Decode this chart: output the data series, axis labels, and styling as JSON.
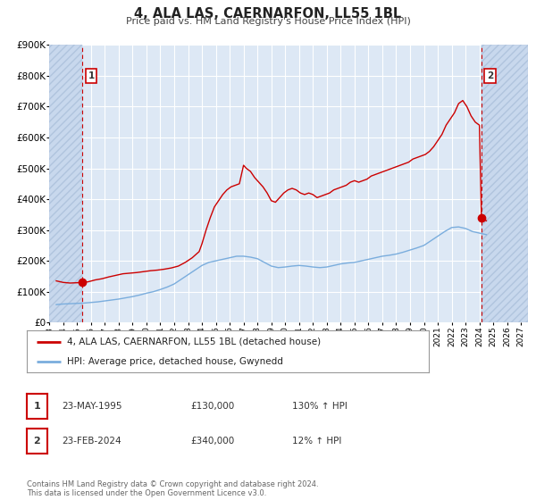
{
  "title": "4, ALA LAS, CAERNARFON, LL55 1BL",
  "subtitle": "Price paid vs. HM Land Registry's House Price Index (HPI)",
  "background_color": "#ffffff",
  "plot_bg_color": "#dde8f5",
  "hatch_bg_color": "#c8d8ed",
  "grid_color": "#ffffff",
  "red_line_color": "#cc0000",
  "blue_line_color": "#7aaddd",
  "ylim": [
    0,
    900000
  ],
  "yticks": [
    0,
    100000,
    200000,
    300000,
    400000,
    500000,
    600000,
    700000,
    800000,
    900000
  ],
  "ytick_labels": [
    "£0",
    "£100K",
    "£200K",
    "£300K",
    "£400K",
    "£500K",
    "£600K",
    "£700K",
    "£800K",
    "£900K"
  ],
  "xlim_start": 1993.0,
  "xlim_end": 2027.5,
  "xticks": [
    1993,
    1994,
    1995,
    1996,
    1997,
    1998,
    1999,
    2000,
    2001,
    2002,
    2003,
    2004,
    2005,
    2006,
    2007,
    2008,
    2009,
    2010,
    2011,
    2012,
    2013,
    2014,
    2015,
    2016,
    2017,
    2018,
    2019,
    2020,
    2021,
    2022,
    2023,
    2024,
    2025,
    2026,
    2027
  ],
  "point1_x": 1995.388,
  "point1_y": 130000,
  "point2_x": 2024.143,
  "point2_y": 340000,
  "hatch_left_end": 1995.388,
  "hatch_right_start": 2024.143,
  "legend_label_red": "4, ALA LAS, CAERNARFON, LL55 1BL (detached house)",
  "legend_label_blue": "HPI: Average price, detached house, Gwynedd",
  "table_row1": [
    "1",
    "23-MAY-1995",
    "£130,000",
    "130% ↑ HPI"
  ],
  "table_row2": [
    "2",
    "23-FEB-2024",
    "£340,000",
    "12% ↑ HPI"
  ],
  "footer": "Contains HM Land Registry data © Crown copyright and database right 2024.\nThis data is licensed under the Open Government Licence v3.0.",
  "red_x": [
    1993.5,
    1994.0,
    1994.5,
    1995.0,
    1995.388,
    1995.8,
    1996.3,
    1996.8,
    1997.3,
    1997.8,
    1998.3,
    1998.8,
    1999.3,
    1999.8,
    2000.3,
    2000.8,
    2001.3,
    2001.8,
    2002.3,
    2002.8,
    2003.3,
    2003.8,
    2004.0,
    2004.3,
    2004.6,
    2004.9,
    2005.2,
    2005.5,
    2005.8,
    2006.1,
    2006.4,
    2006.7,
    2007.0,
    2007.2,
    2007.5,
    2007.8,
    2008.1,
    2008.4,
    2008.7,
    2009.0,
    2009.3,
    2009.6,
    2009.9,
    2010.2,
    2010.5,
    2010.8,
    2011.1,
    2011.4,
    2011.7,
    2012.0,
    2012.3,
    2012.6,
    2012.9,
    2013.2,
    2013.5,
    2013.8,
    2014.1,
    2014.4,
    2014.7,
    2015.0,
    2015.3,
    2015.6,
    2015.9,
    2016.2,
    2016.5,
    2016.8,
    2017.1,
    2017.4,
    2017.7,
    2018.0,
    2018.3,
    2018.6,
    2018.9,
    2019.2,
    2019.5,
    2019.8,
    2020.1,
    2020.4,
    2020.7,
    2021.0,
    2021.3,
    2021.6,
    2021.9,
    2022.2,
    2022.5,
    2022.8,
    2023.1,
    2023.4,
    2023.7,
    2024.0,
    2024.143,
    2024.5
  ],
  "red_y": [
    135000,
    130000,
    128000,
    129000,
    130000,
    132000,
    138000,
    142000,
    148000,
    153000,
    158000,
    160000,
    162000,
    165000,
    168000,
    170000,
    173000,
    177000,
    183000,
    195000,
    210000,
    230000,
    255000,
    300000,
    340000,
    375000,
    395000,
    415000,
    430000,
    440000,
    445000,
    450000,
    510000,
    500000,
    490000,
    470000,
    455000,
    440000,
    420000,
    395000,
    390000,
    405000,
    420000,
    430000,
    435000,
    430000,
    420000,
    415000,
    420000,
    415000,
    405000,
    410000,
    415000,
    420000,
    430000,
    435000,
    440000,
    445000,
    455000,
    460000,
    455000,
    460000,
    465000,
    475000,
    480000,
    485000,
    490000,
    495000,
    500000,
    505000,
    510000,
    515000,
    520000,
    530000,
    535000,
    540000,
    545000,
    555000,
    570000,
    590000,
    610000,
    640000,
    660000,
    680000,
    710000,
    720000,
    700000,
    670000,
    650000,
    640000,
    340000,
    330000
  ],
  "blue_x": [
    1993.5,
    1994.0,
    1994.5,
    1995.0,
    1995.5,
    1996.0,
    1996.5,
    1997.0,
    1997.5,
    1998.0,
    1998.5,
    1999.0,
    1999.5,
    2000.0,
    2000.5,
    2001.0,
    2001.5,
    2002.0,
    2002.5,
    2003.0,
    2003.5,
    2004.0,
    2004.5,
    2005.0,
    2005.5,
    2006.0,
    2006.5,
    2007.0,
    2007.5,
    2008.0,
    2008.5,
    2009.0,
    2009.5,
    2010.0,
    2010.5,
    2011.0,
    2011.5,
    2012.0,
    2012.5,
    2013.0,
    2013.5,
    2014.0,
    2014.5,
    2015.0,
    2015.5,
    2016.0,
    2016.5,
    2017.0,
    2017.5,
    2018.0,
    2018.5,
    2019.0,
    2019.5,
    2020.0,
    2020.5,
    2021.0,
    2021.5,
    2022.0,
    2022.5,
    2023.0,
    2023.5,
    2024.0,
    2024.5
  ],
  "blue_y": [
    58000,
    60000,
    61000,
    62000,
    63000,
    65000,
    67000,
    70000,
    73000,
    76000,
    80000,
    84000,
    89000,
    95000,
    100000,
    107000,
    115000,
    125000,
    140000,
    155000,
    170000,
    185000,
    195000,
    200000,
    205000,
    210000,
    215000,
    215000,
    212000,
    207000,
    195000,
    183000,
    178000,
    180000,
    183000,
    185000,
    183000,
    180000,
    178000,
    180000,
    185000,
    190000,
    193000,
    195000,
    200000,
    205000,
    210000,
    215000,
    218000,
    222000,
    228000,
    235000,
    242000,
    250000,
    265000,
    280000,
    295000,
    308000,
    310000,
    305000,
    295000,
    290000,
    285000
  ]
}
